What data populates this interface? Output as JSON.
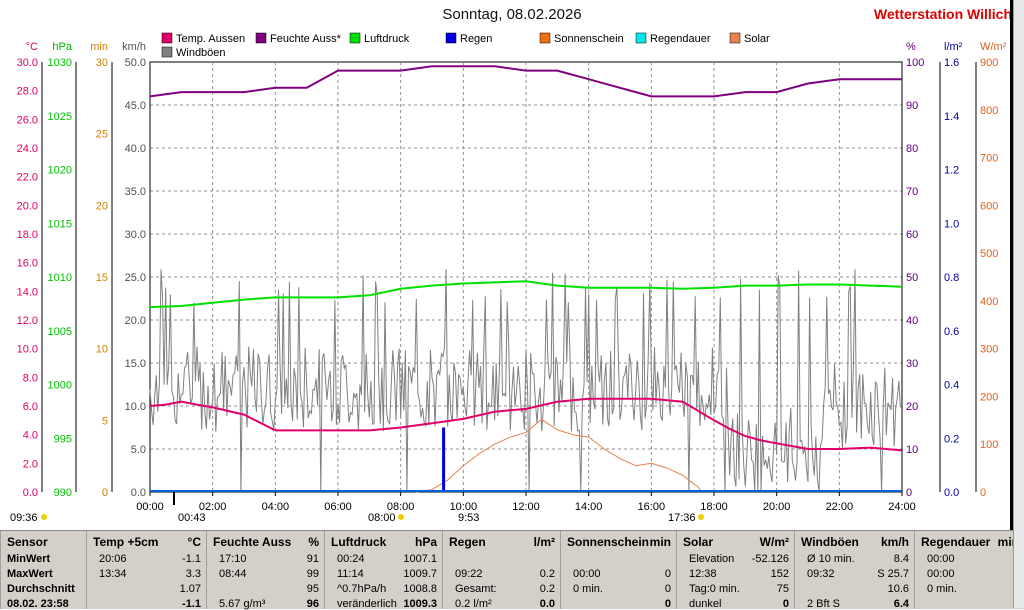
{
  "header": {
    "title": "Sonntag, 08.02.2026",
    "station": "Wetterstation Willich"
  },
  "chart_data": {
    "type": "line",
    "title": "Sonntag, 08.02.2026",
    "xlim": [
      0,
      24
    ],
    "x_ticks": [
      "00:00",
      "02:00",
      "04:00",
      "06:00",
      "08:00",
      "10:00",
      "12:00",
      "14:00",
      "16:00",
      "18:00",
      "20:00",
      "22:00",
      "24:00"
    ],
    "axes": {
      "temp": {
        "unit": "°C",
        "range": [
          0,
          30
        ],
        "ticks": [
          "0.0",
          "2.0",
          "4.0",
          "6.0",
          "8.0",
          "10.0",
          "12.0",
          "14.0",
          "16.0",
          "18.0",
          "20.0",
          "22.0",
          "24.0",
          "26.0",
          "28.0",
          "30.0"
        ],
        "color": "#e0006a"
      },
      "pressure": {
        "unit": "hPa",
        "range": [
          990,
          1030
        ],
        "ticks": [
          "990",
          "995",
          "1000",
          "1005",
          "1010",
          "1015",
          "1020",
          "1025",
          "1030"
        ],
        "color": "#00c800"
      },
      "minutes": {
        "unit": "min",
        "range": [
          0,
          30
        ],
        "ticks": [
          "0",
          "5",
          "10",
          "15",
          "20",
          "25",
          "30"
        ],
        "color": "#e08000"
      },
      "wind": {
        "unit": "km/h",
        "range": [
          0,
          50
        ],
        "ticks": [
          "0.0",
          "5.0",
          "10.0",
          "15.0",
          "20.0",
          "25.0",
          "30.0",
          "35.0",
          "40.0",
          "45.0",
          "50.0"
        ],
        "color": "#606060"
      },
      "humidity": {
        "unit": "%",
        "range": [
          0,
          100
        ],
        "ticks": [
          "0",
          "10",
          "20",
          "30",
          "40",
          "50",
          "60",
          "70",
          "80",
          "90",
          "100"
        ],
        "color": "#600080"
      },
      "rain": {
        "unit": "l/m²",
        "range": [
          0,
          1.6
        ],
        "ticks": [
          "0.0",
          "0.2",
          "0.4",
          "0.6",
          "0.8",
          "1.0",
          "1.2",
          "1.4",
          "1.6"
        ],
        "color": "#0000c0"
      },
      "solar": {
        "unit": "W/m²",
        "range": [
          0,
          900
        ],
        "ticks": [
          "0",
          "100",
          "200",
          "300",
          "400",
          "500",
          "600",
          "700",
          "800",
          "900"
        ],
        "color": "#e06020"
      }
    },
    "legend": [
      {
        "name": "Temp. Aussen",
        "color": "#e0006a"
      },
      {
        "name": "Feuchte Auss*",
        "color": "#800080"
      },
      {
        "name": "Luftdruck",
        "color": "#00e000"
      },
      {
        "name": "Regen",
        "color": "#0000e0"
      },
      {
        "name": "Sonnenschein",
        "color": "#f07010"
      },
      {
        "name": "Regendauer",
        "color": "#00e8e8"
      },
      {
        "name": "Solar",
        "color": "#e88050"
      },
      {
        "name": "Windböen",
        "color": "#808080"
      }
    ],
    "series": [
      {
        "name": "Temp. Aussen",
        "axis": "temp",
        "x": [
          0,
          0.5,
          1,
          1.5,
          2,
          3,
          4,
          5,
          6,
          7,
          8,
          9,
          10,
          11,
          12,
          13,
          14,
          15,
          16,
          17,
          18,
          18.5,
          19,
          19.5,
          20,
          21,
          22,
          23,
          24
        ],
        "values": [
          6.0,
          6.1,
          6.3,
          6.1,
          5.9,
          5.4,
          4.3,
          4.3,
          4.3,
          4.3,
          4.5,
          4.8,
          5.1,
          5.6,
          5.8,
          6.3,
          6.5,
          6.5,
          6.5,
          6.3,
          5.0,
          4.4,
          3.9,
          3.6,
          3.4,
          3.0,
          3.0,
          3.1,
          2.9
        ]
      },
      {
        "name": "Feuchte Auss*",
        "axis": "humidity",
        "x": [
          0,
          1,
          2,
          3,
          4,
          5,
          6,
          7,
          8,
          9,
          10,
          11,
          12,
          13,
          14,
          15,
          16,
          17,
          18,
          19,
          20,
          21,
          22,
          23,
          24
        ],
        "values": [
          92,
          93,
          93,
          93,
          94,
          94,
          98,
          98,
          98,
          99,
          99,
          99,
          98,
          98,
          96,
          94,
          92,
          92,
          92,
          93,
          93,
          95,
          96,
          96,
          96
        ]
      },
      {
        "name": "Luftdruck",
        "axis": "pressure",
        "x": [
          0,
          1,
          2,
          3,
          4,
          5,
          6,
          7,
          8,
          9,
          10,
          11,
          12,
          13,
          14,
          15,
          16,
          17,
          18,
          19,
          20,
          21,
          22,
          23,
          24
        ],
        "values": [
          1007.2,
          1007.3,
          1007.6,
          1007.9,
          1008.1,
          1008.1,
          1008.1,
          1008.3,
          1008.9,
          1009.2,
          1009.4,
          1009.5,
          1009.6,
          1009.2,
          1009.0,
          1009.0,
          1009.0,
          1008.9,
          1009.0,
          1009.2,
          1009.2,
          1009.3,
          1009.3,
          1009.2,
          1009.1
        ]
      },
      {
        "name": "Solar",
        "axis": "solar",
        "x": [
          8.5,
          9,
          9.5,
          10,
          10.5,
          11,
          11.5,
          12,
          12.5,
          13,
          13.5,
          14,
          14.5,
          15,
          15.5,
          16,
          16.5,
          17,
          17.5,
          17.6
        ],
        "values": [
          0,
          5,
          25,
          55,
          80,
          100,
          115,
          125,
          152,
          130,
          120,
          115,
          90,
          70,
          55,
          60,
          50,
          35,
          10,
          0
        ]
      },
      {
        "name": "Regen",
        "axis": "rain",
        "x": [
          9.37
        ],
        "values": [
          0.24
        ]
      }
    ],
    "markers": {
      "bottom": [
        "09:36",
        "08:00",
        "9:53",
        "17:36"
      ],
      "top": [
        "00:43"
      ]
    }
  },
  "table": {
    "columns": [
      {
        "name": "Sensor",
        "rows": [
          "MinWert",
          "MaxWert",
          "Durchschnitt",
          "08.02. 23:58"
        ]
      },
      {
        "name": "Temp +5cm",
        "unit": "°C",
        "rows": [
          [
            "20:06",
            "-1.1"
          ],
          [
            "13:34",
            "3.3"
          ],
          [
            "",
            "1.07"
          ],
          [
            "",
            "-1.1"
          ]
        ]
      },
      {
        "name": "Feuchte Auss",
        "unit": "%",
        "rows": [
          [
            "17:10",
            "91"
          ],
          [
            "08:44",
            "99"
          ],
          [
            "",
            "95"
          ],
          [
            "5.67 g/m³",
            "96"
          ]
        ]
      },
      {
        "name": "Luftdruck",
        "unit": "hPa",
        "rows": [
          [
            "00:24",
            "1007.1"
          ],
          [
            "11:14",
            "1009.7"
          ],
          [
            "^0.7hPa/h",
            "1008.8"
          ],
          [
            "veränderlich",
            "1009.3"
          ]
        ]
      },
      {
        "name": "Regen",
        "unit": "l/m²",
        "rows": [
          [
            "",
            ""
          ],
          [
            "09:22",
            "0.2"
          ],
          [
            "Gesamt:",
            "0.2"
          ],
          [
            "0.2 l/m²",
            "0.0"
          ]
        ]
      },
      {
        "name": "Sonnenschein",
        "unit": "min",
        "rows": [
          [
            "",
            ""
          ],
          [
            "00:00",
            "0"
          ],
          [
            "0 min.",
            "0"
          ],
          [
            "",
            "0"
          ]
        ]
      },
      {
        "name": "Solar",
        "unit": "W/m²",
        "rows": [
          [
            "Elevation",
            "-52.126"
          ],
          [
            "12:38",
            "152"
          ],
          [
            "Tag:0 min.",
            "75"
          ],
          [
            "dunkel",
            "0"
          ]
        ]
      },
      {
        "name": "Windböen",
        "unit": "km/h",
        "rows": [
          [
            "Ø 10 min.",
            "8.4"
          ],
          [
            "09:32",
            "S 25.7"
          ],
          [
            "",
            "10.6"
          ],
          [
            "2 Bft S",
            "6.4"
          ]
        ]
      },
      {
        "name": "Regendauer",
        "unit": "min",
        "rows": [
          [
            "00:00",
            ""
          ],
          [
            "00:00",
            ""
          ],
          [
            "0 min.",
            ""
          ],
          [
            "",
            ""
          ]
        ]
      }
    ]
  }
}
